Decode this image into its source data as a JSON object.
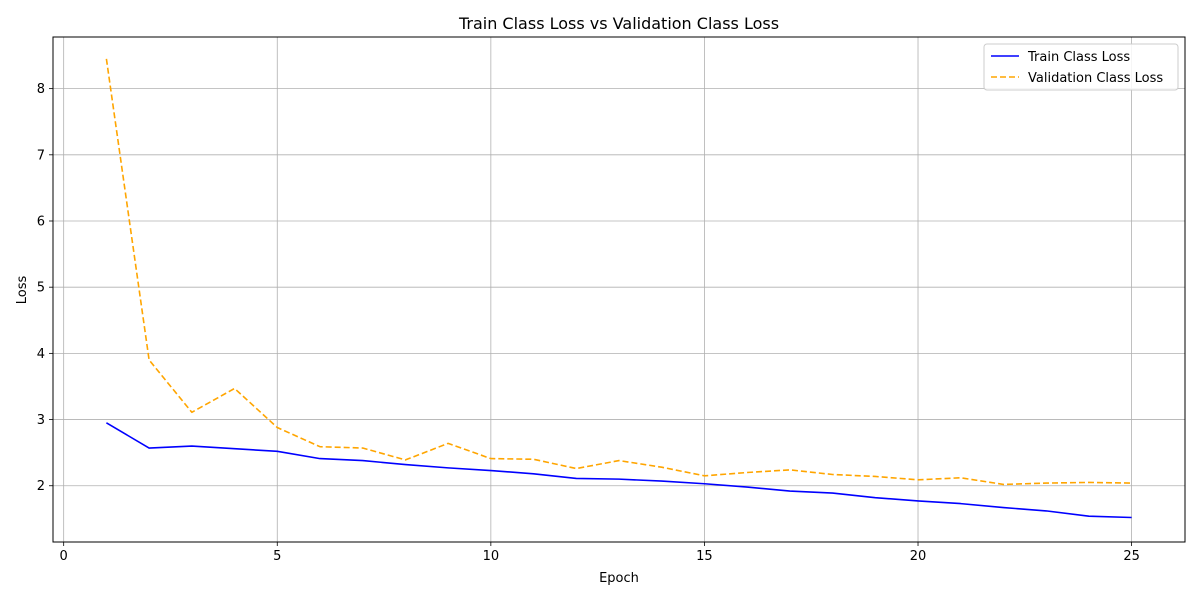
{
  "chart_data": {
    "type": "line",
    "title": "Train Class Loss vs Validation Class Loss",
    "xlabel": "Epoch",
    "ylabel": "Loss",
    "xlim": [
      -0.25,
      26.25
    ],
    "ylim": [
      1.15,
      8.78
    ],
    "xticks": [
      0,
      5,
      10,
      15,
      20,
      25
    ],
    "yticks": [
      2,
      3,
      4,
      5,
      6,
      7,
      8
    ],
    "grid": true,
    "legend_position": "top-right",
    "x": [
      1,
      2,
      3,
      4,
      5,
      6,
      7,
      8,
      9,
      10,
      11,
      12,
      13,
      14,
      15,
      16,
      17,
      18,
      19,
      20,
      21,
      22,
      23,
      24,
      25
    ],
    "series": [
      {
        "name": "Train Class Loss",
        "color": "#0000ff",
        "style": "solid",
        "values": [
          2.95,
          2.57,
          2.6,
          2.56,
          2.52,
          2.41,
          2.38,
          2.32,
          2.27,
          2.23,
          2.18,
          2.11,
          2.1,
          2.07,
          2.03,
          1.98,
          1.92,
          1.89,
          1.82,
          1.77,
          1.73,
          1.67,
          1.62,
          1.54,
          1.52
        ]
      },
      {
        "name": "Validation Class Loss",
        "color": "#ffa500",
        "style": "dashed",
        "values": [
          8.45,
          3.9,
          3.11,
          3.47,
          2.88,
          2.59,
          2.57,
          2.39,
          2.64,
          2.41,
          2.4,
          2.26,
          2.38,
          2.28,
          2.15,
          2.2,
          2.24,
          2.17,
          2.14,
          2.09,
          2.12,
          2.02,
          2.04,
          2.05,
          2.04
        ]
      }
    ]
  }
}
